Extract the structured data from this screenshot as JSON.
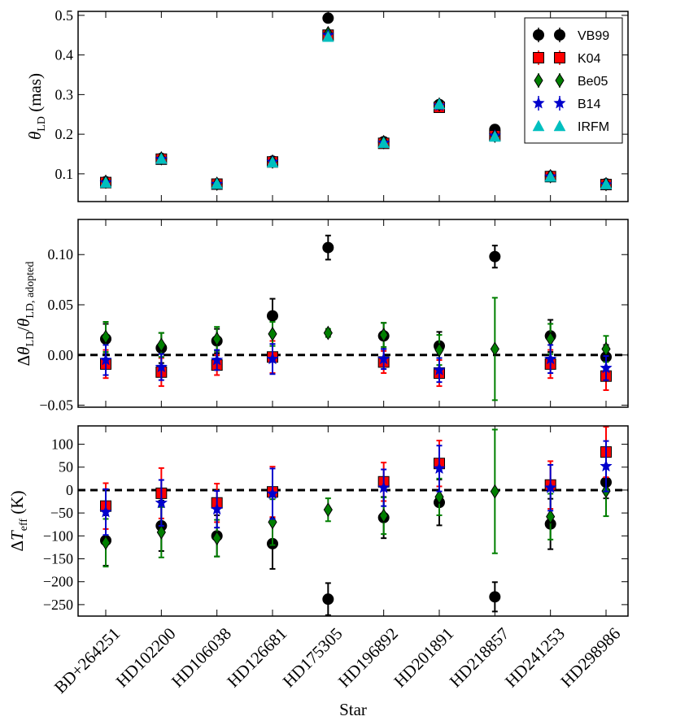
{
  "chart_data": {
    "type": "scatter",
    "shared_x": {
      "label": "Star",
      "categories": [
        "BD+264251",
        "HD102200",
        "HD106038",
        "HD126681",
        "HD175305",
        "HD196892",
        "HD201891",
        "HD218857",
        "HD241253",
        "HD298986"
      ]
    },
    "series_styles": {
      "VB99": {
        "color": "#000000",
        "marker": "circle"
      },
      "K04": {
        "color": "#ff0000",
        "marker": "square"
      },
      "Be05": {
        "color": "#007f00",
        "marker": "diamond"
      },
      "B14": {
        "color": "#0000cc",
        "marker": "star"
      },
      "IRFM": {
        "color": "#00bfbf",
        "marker": "triangle"
      }
    },
    "legend": {
      "placement": "top-right",
      "entries": [
        "VB99",
        "K04",
        "Be05",
        "B14",
        "IRFM"
      ]
    },
    "panels": [
      {
        "id": "theta",
        "ylabel": "θ_LD (mas)",
        "ylim": [
          0.03,
          0.51
        ],
        "yticks": [
          0.1,
          0.2,
          0.3,
          0.4,
          0.5
        ],
        "ytick_labels": [
          "0.1",
          "0.2",
          "0.3",
          "0.4",
          "0.5"
        ],
        "reference_line": null,
        "series": [
          {
            "name": "VB99",
            "values": [
              0.08,
              0.139,
              0.075,
              0.132,
              0.493,
              0.181,
              0.275,
              0.212,
              0.094,
              0.075
            ],
            "errors": [
              0,
              0,
              0,
              0,
              0,
              0,
              0,
              0,
              0,
              0
            ]
          },
          {
            "name": "K04",
            "values": [
              0.078,
              0.137,
              0.074,
              0.13,
              0.45,
              0.177,
              0.268,
              0.196,
              0.093,
              0.073
            ],
            "errors": [
              0,
              0,
              0,
              0,
              0,
              0,
              0,
              0,
              0,
              0
            ]
          },
          {
            "name": "Be05",
            "values": [
              0.08,
              0.139,
              0.075,
              0.131,
              0.455,
              0.18,
              0.275,
              0.196,
              0.094,
              0.074
            ],
            "errors": [
              0,
              0,
              0,
              0,
              0,
              0,
              0,
              0,
              0,
              0
            ]
          },
          {
            "name": "B14",
            "values": [
              0.078,
              0.137,
              0.074,
              0.13,
              0.45,
              0.178,
              0.272,
              0.196,
              0.093,
              0.073
            ],
            "errors": [
              0,
              0,
              0,
              0,
              0,
              0,
              0,
              0,
              0,
              0
            ]
          },
          {
            "name": "IRFM",
            "values": [
              0.078,
              0.138,
              0.075,
              0.129,
              0.446,
              0.178,
              0.276,
              0.194,
              0.093,
              0.074
            ],
            "errors": [
              0,
              0,
              0,
              0,
              0,
              0,
              0,
              0,
              0,
              0
            ]
          }
        ]
      },
      {
        "id": "dtheta",
        "ylabel": "Δθ_LD/θ_LD,adopted",
        "ylim": [
          -0.052,
          0.135
        ],
        "yticks": [
          -0.05,
          0.0,
          0.05,
          0.1
        ],
        "ytick_labels": [
          "−0.05",
          "0.00",
          "0.05",
          "0.10"
        ],
        "reference_line": 0,
        "series": [
          {
            "name": "VB99",
            "values": [
              0.016,
              0.007,
              0.014,
              0.039,
              0.107,
              0.019,
              0.009,
              0.098,
              0.019,
              -0.002
            ],
            "errors": [
              0.015,
              0.015,
              0.012,
              0.017,
              0.012,
              0.013,
              0.014,
              0.011,
              0.016,
              0.012
            ]
          },
          {
            "name": "K04",
            "values": [
              -0.009,
              -0.017,
              -0.01,
              -0.002,
              null,
              -0.007,
              -0.018,
              null,
              -0.009,
              -0.021
            ],
            "errors": [
              0.014,
              0.014,
              0.01,
              0.016,
              0,
              0.011,
              0.013,
              0,
              0.014,
              0.014
            ]
          },
          {
            "name": "Be05",
            "values": [
              0.018,
              0.01,
              0.016,
              0.021,
              0.022,
              0.02,
              0.005,
              0.006,
              0.016,
              0.006
            ],
            "errors": [
              0.015,
              0.012,
              0.012,
              0.012,
              0.004,
              0.012,
              0.015,
              0.051,
              0.015,
              0.013
            ]
          },
          {
            "name": "B14",
            "values": [
              -0.005,
              -0.012,
              -0.005,
              -0.004,
              null,
              -0.004,
              -0.015,
              null,
              -0.004,
              -0.013
            ],
            "errors": [
              0.015,
              0.013,
              0.01,
              0.015,
              0,
              0.01,
              0.012,
              0,
              0.014,
              0.012
            ]
          }
        ]
      },
      {
        "id": "dteff",
        "ylabel": "ΔT_eff (K)",
        "ylim": [
          -275,
          140
        ],
        "yticks": [
          -250,
          -200,
          -150,
          -100,
          -50,
          0,
          50,
          100
        ],
        "ytick_labels": [
          "−250",
          "−200",
          "−150",
          "−100",
          "−50",
          "0",
          "50",
          "100"
        ],
        "reference_line": 0,
        "series": [
          {
            "name": "VB99",
            "values": [
              -110,
              -78,
              -100,
              -117,
              -238,
              -60,
              -27,
              -233,
              -74,
              17
            ],
            "errors": [
              55,
              55,
              45,
              55,
              35,
              45,
              50,
              32,
              55,
              35
            ]
          },
          {
            "name": "K04",
            "values": [
              -35,
              -7,
              -28,
              -4,
              null,
              18,
              58,
              null,
              11,
              83
            ],
            "errors": [
              50,
              55,
              42,
              55,
              0,
              42,
              50,
              0,
              52,
              55
            ]
          },
          {
            "name": "Be05",
            "values": [
              -115,
              -92,
              -105,
              -70,
              -43,
              -56,
              -15,
              -3,
              -58,
              -2
            ],
            "errors": [
              52,
              55,
              40,
              50,
              25,
              40,
              40,
              135,
              50,
              55
            ]
          },
          {
            "name": "B14",
            "values": [
              -48,
              -28,
              -42,
              -8,
              null,
              5,
              47,
              null,
              5,
              52
            ],
            "errors": [
              50,
              50,
              40,
              55,
              0,
              40,
              50,
              0,
              50,
              55
            ]
          }
        ]
      }
    ]
  }
}
